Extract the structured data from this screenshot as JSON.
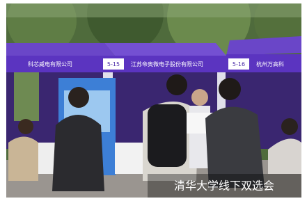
{
  "booths": [
    "5-15",
    "5-16"
  ],
  "companies": [
    "科芯威电有限公司",
    "江苏帝奥微电子股份有限公司",
    "杭州万高科"
  ],
  "caption": "清华大学线下双选会"
}
